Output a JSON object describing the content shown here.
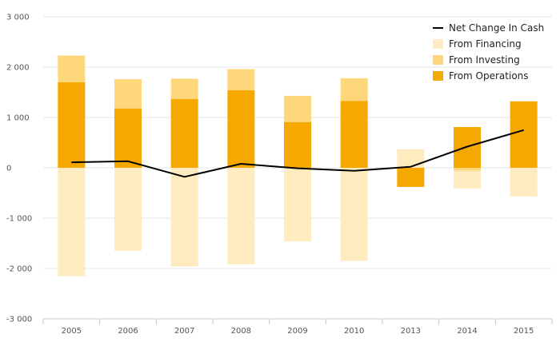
{
  "chart_data": {
    "type": "bar",
    "categories": [
      "2005",
      "2006",
      "2007",
      "2008",
      "2009",
      "2010",
      "2013",
      "2014",
      "2015"
    ],
    "y_ticks": [
      "3 000",
      "2 000",
      "1 000",
      "0",
      "-1 000",
      "-2 000",
      "-3 000"
    ],
    "ylim": [
      -3000,
      3000
    ],
    "grid": true,
    "legend_position": "top-right",
    "series": [
      {
        "name": "From Operations",
        "kind": "bar",
        "color": "#F5A800",
        "values": [
          1700,
          1180,
          1370,
          1540,
          910,
          1330,
          -380,
          810,
          1320
        ]
      },
      {
        "name": "From Investing",
        "kind": "bar",
        "color": "#FDD77A",
        "values": [
          530,
          580,
          400,
          420,
          520,
          450,
          0,
          -60,
          0
        ]
      },
      {
        "name": "From Financing",
        "kind": "bar",
        "color": "#FEECC0",
        "values": [
          -2150,
          -1650,
          -1960,
          -1920,
          -1460,
          -1850,
          370,
          -350,
          -570
        ]
      },
      {
        "name": "Net Change In Cash",
        "kind": "line",
        "color": "#000000",
        "values": [
          110,
          130,
          -180,
          80,
          -10,
          -60,
          20,
          420,
          750
        ]
      }
    ],
    "legend": [
      "Net Change In Cash",
      "From Financing",
      "From Investing",
      "From Operations"
    ]
  }
}
